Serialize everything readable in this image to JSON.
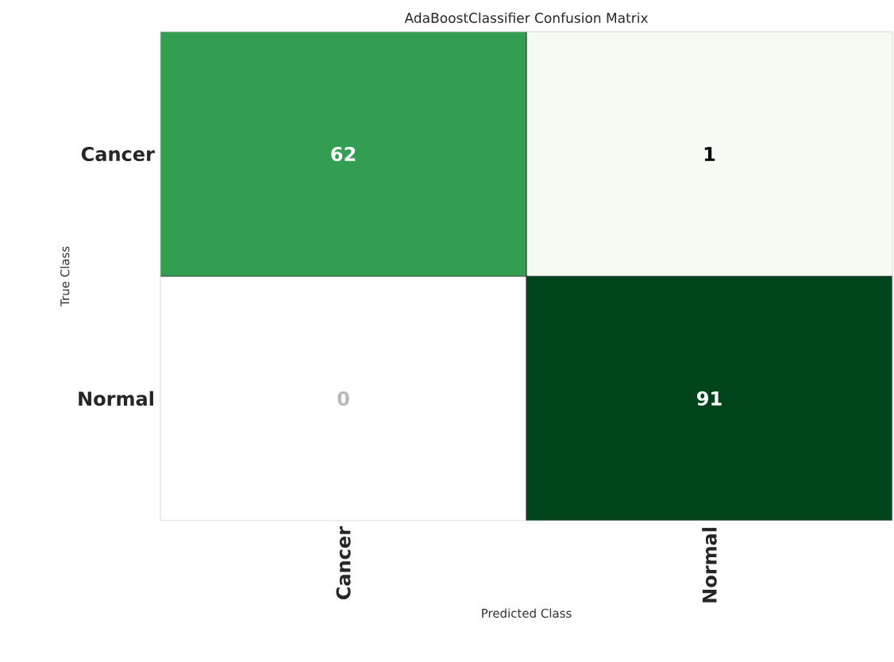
{
  "chart_data": {
    "type": "heatmap",
    "title": "AdaBoostClassifier Confusion Matrix",
    "xlabel": "Predicted Class",
    "ylabel": "True Class",
    "categories": [
      "Cancer",
      "Normal"
    ],
    "y_categories": [
      "Cancer",
      "Normal"
    ],
    "cells": [
      [
        62,
        1
      ],
      [
        0,
        91
      ]
    ],
    "data_labels": true,
    "grid": false
  }
}
